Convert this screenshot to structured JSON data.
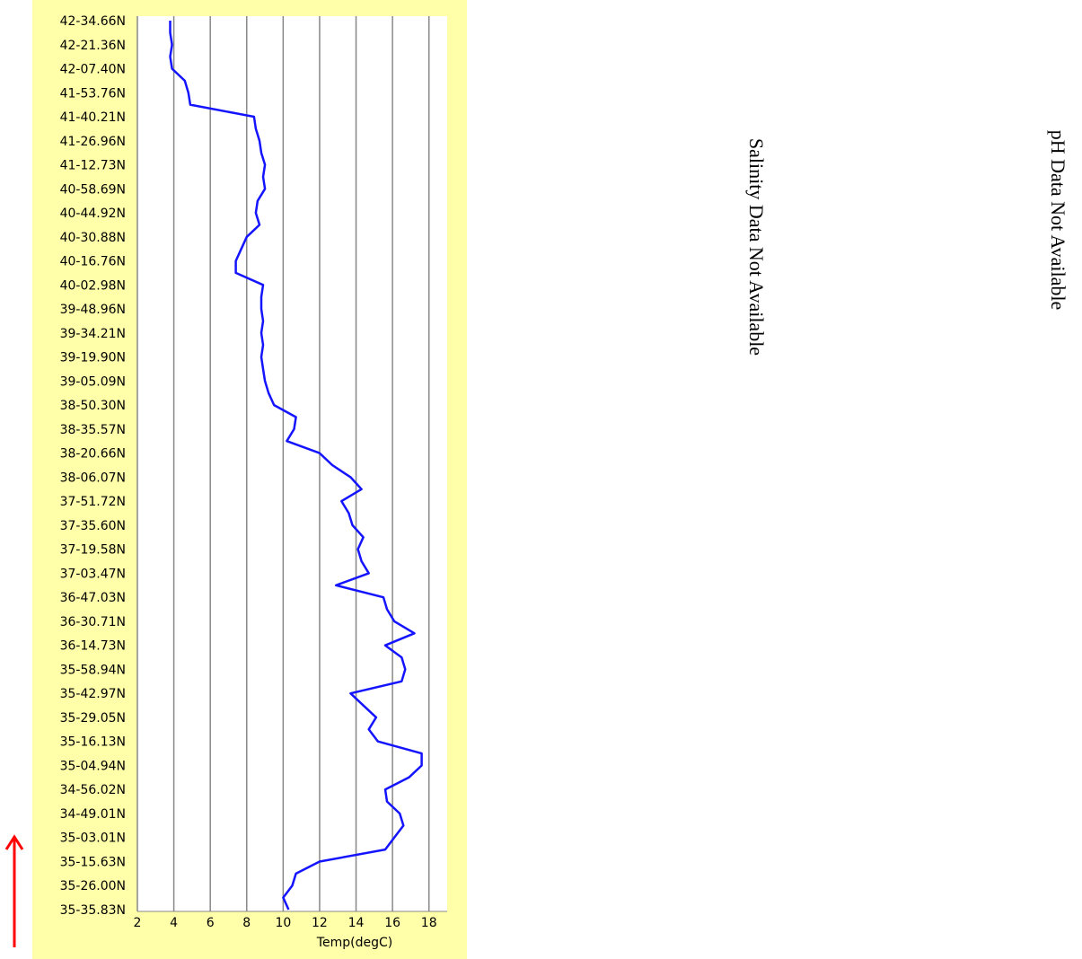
{
  "chart_data": {
    "type": "line",
    "orientation": "horizontal",
    "x_label": "Temp(degC)",
    "xlim": [
      2,
      19
    ],
    "xticks": [
      2,
      4,
      6,
      8,
      10,
      12,
      14,
      16,
      18
    ],
    "grid": true,
    "categories": [
      "35-35.83N",
      null,
      "35-26.00N",
      null,
      "35-15.63N",
      null,
      "35-03.01N",
      null,
      "34-49.01N",
      null,
      "34-56.02N",
      null,
      "35-04.94N",
      null,
      "35-16.13N",
      null,
      "35-29.05N",
      null,
      "35-42.97N",
      null,
      "35-58.94N",
      null,
      "36-14.73N",
      null,
      "36-30.71N",
      null,
      "36-47.03N",
      null,
      "37-03.47N",
      null,
      "37-19.58N",
      null,
      "37-35.60N",
      null,
      "37-51.72N",
      null,
      "38-06.07N",
      null,
      "38-20.66N",
      null,
      "38-35.57N",
      null,
      "38-50.30N",
      null,
      "39-05.09N",
      null,
      "39-19.90N",
      null,
      "39-34.21N",
      null,
      "39-48.96N",
      null,
      "40-02.98N",
      null,
      "40-16.76N",
      null,
      "40-30.88N",
      null,
      "40-44.92N",
      null,
      "40-58.69N",
      null,
      "41-12.73N",
      null,
      "41-26.96N",
      null,
      "41-40.21N",
      null,
      "41-53.76N",
      null,
      "42-07.40N",
      null,
      "42-21.36N",
      null,
      "42-34.66N"
    ],
    "color": "#1414ff",
    "values": [
      10.3,
      10.0,
      10.5,
      10.7,
      12.0,
      15.6,
      16.1,
      16.6,
      16.4,
      15.7,
      15.6,
      16.9,
      17.6,
      17.6,
      15.2,
      14.7,
      15.1,
      14.4,
      13.7,
      16.5,
      16.7,
      16.5,
      15.6,
      17.2,
      16.1,
      15.7,
      15.5,
      12.9,
      14.7,
      14.3,
      14.1,
      14.4,
      13.8,
      13.6,
      13.2,
      14.3,
      13.7,
      12.7,
      12.0,
      10.2,
      10.6,
      10.7,
      9.5,
      9.2,
      9.0,
      8.9,
      8.8,
      8.9,
      8.8,
      8.9,
      8.8,
      8.8,
      8.9,
      7.4,
      7.4,
      7.7,
      8.0,
      8.7,
      8.5,
      8.6,
      9.0,
      8.9,
      9.0,
      8.8,
      8.7,
      8.5,
      8.4,
      4.9,
      4.8,
      4.6,
      3.9,
      3.8,
      3.9,
      3.8,
      3.8
    ]
  },
  "notes": {
    "salinity": "Salinity Data Not Available",
    "ph": "pH Data Not Available"
  }
}
